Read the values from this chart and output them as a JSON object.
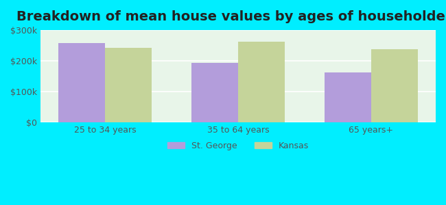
{
  "title": "Breakdown of mean house values by ages of householders",
  "categories": [
    "25 to 34 years",
    "35 to 64 years",
    "65 years+"
  ],
  "st_george_values": [
    258000,
    193000,
    163000
  ],
  "kansas_values": [
    243000,
    262000,
    237000
  ],
  "bar_color_st_george": "#b39ddb",
  "bar_color_kansas": "#c5d49a",
  "ylim": [
    0,
    300000
  ],
  "yticks": [
    0,
    100000,
    200000,
    300000
  ],
  "ytick_labels": [
    "$0",
    "$100k",
    "$200k",
    "$300k"
  ],
  "background_color": "#00eeff",
  "plot_bg_color": "#e8f5e9",
  "title_fontsize": 14,
  "legend_labels": [
    "St. George",
    "Kansas"
  ],
  "bar_width": 0.35,
  "grid_color": "#ffffff",
  "axis_label_color": "#555555"
}
